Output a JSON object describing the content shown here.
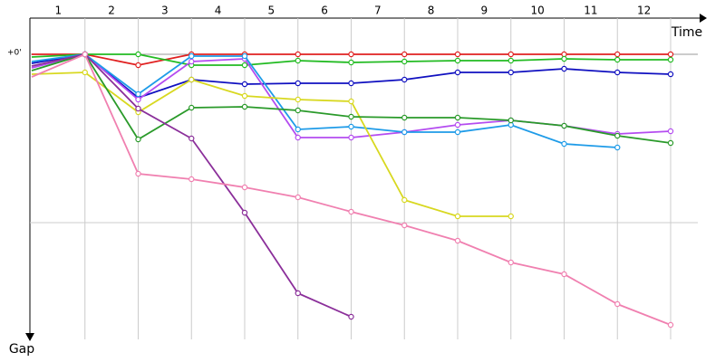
{
  "chart_data": {
    "type": "line",
    "x_label": "Time",
    "y_label": "Gap",
    "categories": [
      "1",
      "2",
      "3",
      "4",
      "5",
      "6",
      "7",
      "8",
      "9",
      "10",
      "11",
      "12"
    ],
    "x": [
      0,
      1,
      2,
      3,
      4,
      5,
      6,
      7,
      8,
      9,
      10,
      11,
      12
    ],
    "xlim": [
      0,
      12
    ],
    "ylim": [
      0,
      315
    ],
    "y_inverted": true,
    "yticks": [
      {
        "value": 0,
        "label": "+0'"
      }
    ],
    "grid": true,
    "series": [
      {
        "color": "#e02020",
        "values": [
          0,
          0,
          12,
          0,
          0,
          0,
          0,
          0,
          0,
          0,
          0,
          0,
          0
        ]
      },
      {
        "color": "#22bb22",
        "values": [
          3,
          0,
          0,
          12,
          12,
          7,
          9,
          8,
          7,
          7,
          5,
          6,
          6
        ]
      },
      {
        "color": "#1010c0",
        "values": [
          10,
          0,
          48,
          28,
          33,
          32,
          32,
          28,
          20,
          20,
          16,
          20,
          22
        ]
      },
      {
        "color": "#b44cf0",
        "values": [
          15,
          0,
          50,
          8,
          5,
          92,
          92,
          86,
          78,
          73,
          79,
          88,
          85
        ]
      },
      {
        "color": "#1e9be8",
        "values": [
          8,
          0,
          44,
          2,
          2,
          83,
          80,
          86,
          86,
          78,
          99,
          103,
          null
        ]
      },
      {
        "color": "#d8d820",
        "values": [
          22,
          20,
          64,
          28,
          46,
          50,
          52,
          161,
          179,
          179,
          null,
          null,
          null
        ]
      },
      {
        "color": "#2a9a2a",
        "values": [
          18,
          0,
          94,
          59,
          58,
          62,
          69,
          70,
          70,
          73,
          79,
          90,
          98
        ]
      },
      {
        "color": "#8b2f9a",
        "values": [
          13,
          0,
          60,
          93,
          175,
          264,
          290,
          null,
          null,
          null,
          null,
          null,
          null
        ]
      },
      {
        "color": "#f080b0",
        "values": [
          25,
          0,
          132,
          138,
          147,
          158,
          174,
          189,
          206,
          230,
          243,
          276,
          299
        ]
      }
    ]
  }
}
